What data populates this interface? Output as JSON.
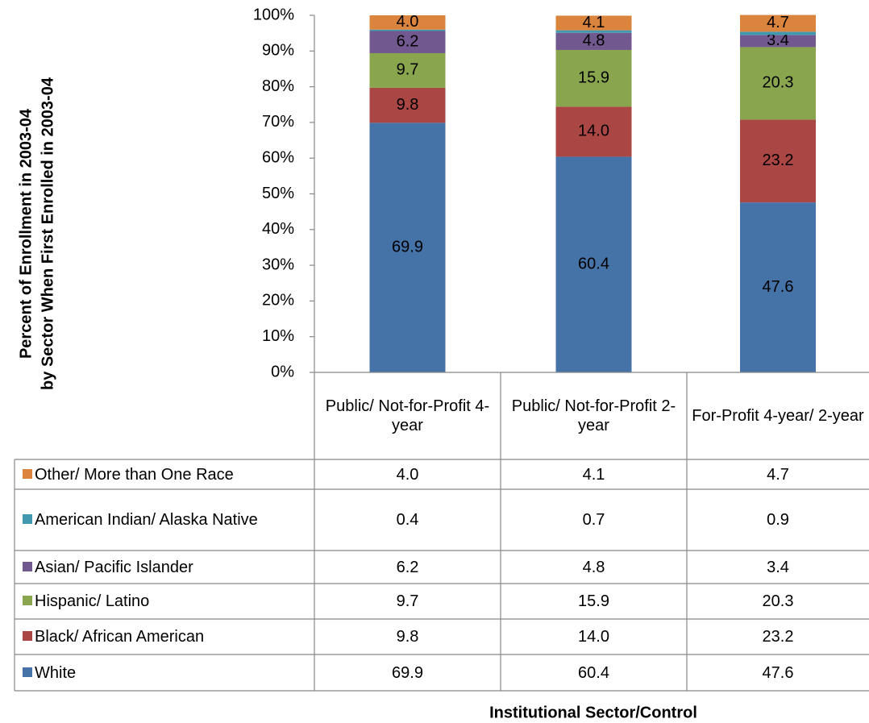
{
  "chart_data": {
    "type": "stacked_bar",
    "ylabel": [
      "Percent of Enrollment in 2003-04",
      "by Sector When First Enrolled in 2003-04"
    ],
    "xlabel": "Institutional Sector/Control",
    "categories": [
      "Public/ Not-for-Profit 4-year",
      "Public/ Not-for-Profit 2-year",
      "For-Profit 4-year/ 2-year"
    ],
    "series": [
      {
        "name": "White",
        "color": "#4572a7",
        "values": [
          69.9,
          60.4,
          47.6
        ],
        "value_labels": [
          "69.9",
          "60.4",
          "47.6"
        ]
      },
      {
        "name": "Black/ African American",
        "color": "#aa4643",
        "values": [
          9.8,
          14.0,
          23.2
        ],
        "value_labels": [
          "9.8",
          "14.0",
          "23.2"
        ]
      },
      {
        "name": "Hispanic/ Latino",
        "color": "#89a54e",
        "values": [
          9.7,
          15.9,
          20.3
        ],
        "value_labels": [
          "9.7",
          "15.9",
          "20.3"
        ]
      },
      {
        "name": "Asian/ Pacific Islander",
        "color": "#71588f",
        "values": [
          6.2,
          4.8,
          3.4
        ],
        "value_labels": [
          "6.2",
          "4.8",
          "3.4"
        ]
      },
      {
        "name": "American Indian/ Alaska Native",
        "color": "#4198af",
        "values": [
          0.4,
          0.7,
          0.9
        ],
        "value_labels": [
          "0.4",
          "0.7",
          "0.9"
        ]
      },
      {
        "name": "Other/ More than One Race",
        "color": "#db843d",
        "values": [
          4.0,
          4.1,
          4.7
        ],
        "value_labels": [
          "4.0",
          "4.1",
          "4.7"
        ]
      }
    ],
    "ylim": [
      0,
      100
    ],
    "yticks": [
      {
        "value": 0,
        "label": "0%"
      },
      {
        "value": 10,
        "label": "10%"
      },
      {
        "value": 20,
        "label": "20%"
      },
      {
        "value": 30,
        "label": "30%"
      },
      {
        "value": 40,
        "label": "40%"
      },
      {
        "value": 50,
        "label": "50%"
      },
      {
        "value": 60,
        "label": "60%"
      },
      {
        "value": 70,
        "label": "70%"
      },
      {
        "value": 80,
        "label": "80%"
      },
      {
        "value": 90,
        "label": "90%"
      },
      {
        "value": 100,
        "label": "100%"
      }
    ]
  }
}
